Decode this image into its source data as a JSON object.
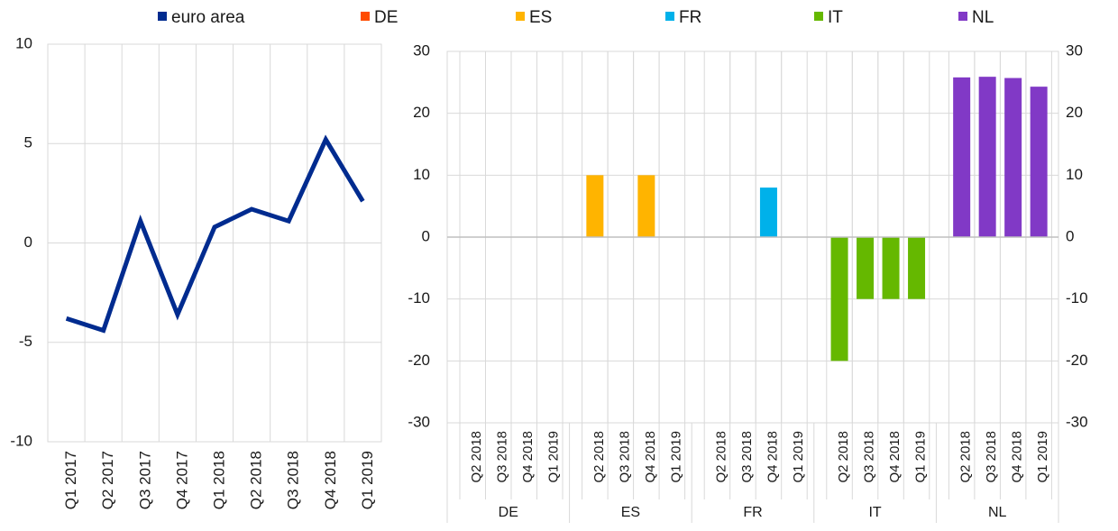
{
  "legend": [
    {
      "label": "euro area",
      "color": "#002b8f"
    },
    {
      "label": "DE",
      "color": "#ff4b00"
    },
    {
      "label": "ES",
      "color": "#ffb400"
    },
    {
      "label": "FR",
      "color": "#00b1ea"
    },
    {
      "label": "IT",
      "color": "#65b800"
    },
    {
      "label": "NL",
      "color": "#8139c6"
    }
  ],
  "chart_data": [
    {
      "type": "line",
      "title": "",
      "xlabel": "",
      "ylabel": "",
      "categories": [
        "Q1 2017",
        "Q2 2017",
        "Q3 2017",
        "Q4 2017",
        "Q1 2018",
        "Q2 2018",
        "Q3 2018",
        "Q4 2018",
        "Q1 2019"
      ],
      "series": [
        {
          "name": "euro area",
          "color": "#002b8f",
          "values": [
            -3.8,
            -4.4,
            1.1,
            -3.6,
            0.8,
            1.7,
            1.1,
            5.2,
            2.1
          ]
        }
      ],
      "ylim": [
        -10,
        10
      ],
      "yticks": [
        10,
        5,
        0,
        -5,
        -10
      ],
      "grid": true
    },
    {
      "type": "bar",
      "title": "",
      "xlabel": "",
      "ylabel": "",
      "ylim": [
        -30,
        30
      ],
      "yticks": [
        30,
        20,
        10,
        0,
        -10,
        -20,
        -30
      ],
      "grid": true,
      "groups": [
        {
          "name": "DE",
          "color": "#ff4b00",
          "categories": [
            "Q2 2018",
            "Q3 2018",
            "Q4 2018",
            "Q1 2019"
          ],
          "values": [
            0,
            0,
            0,
            0
          ]
        },
        {
          "name": "ES",
          "color": "#ffb400",
          "categories": [
            "Q2 2018",
            "Q3 2018",
            "Q4 2018",
            "Q1 2019"
          ],
          "values": [
            10,
            0,
            10,
            0
          ]
        },
        {
          "name": "FR",
          "color": "#00b1ea",
          "categories": [
            "Q2 2018",
            "Q3 2018",
            "Q4 2018",
            "Q1 2019"
          ],
          "values": [
            0,
            0,
            8,
            0
          ]
        },
        {
          "name": "IT",
          "color": "#65b800",
          "categories": [
            "Q2 2018",
            "Q3 2018",
            "Q4 2018",
            "Q1 2019"
          ],
          "values": [
            -20,
            -10,
            -10,
            -10
          ]
        },
        {
          "name": "NL",
          "color": "#8139c6",
          "categories": [
            "Q2 2018",
            "Q3 2018",
            "Q4 2018",
            "Q1 2019"
          ],
          "values": [
            25.8,
            25.9,
            25.7,
            24.3
          ]
        }
      ]
    }
  ]
}
